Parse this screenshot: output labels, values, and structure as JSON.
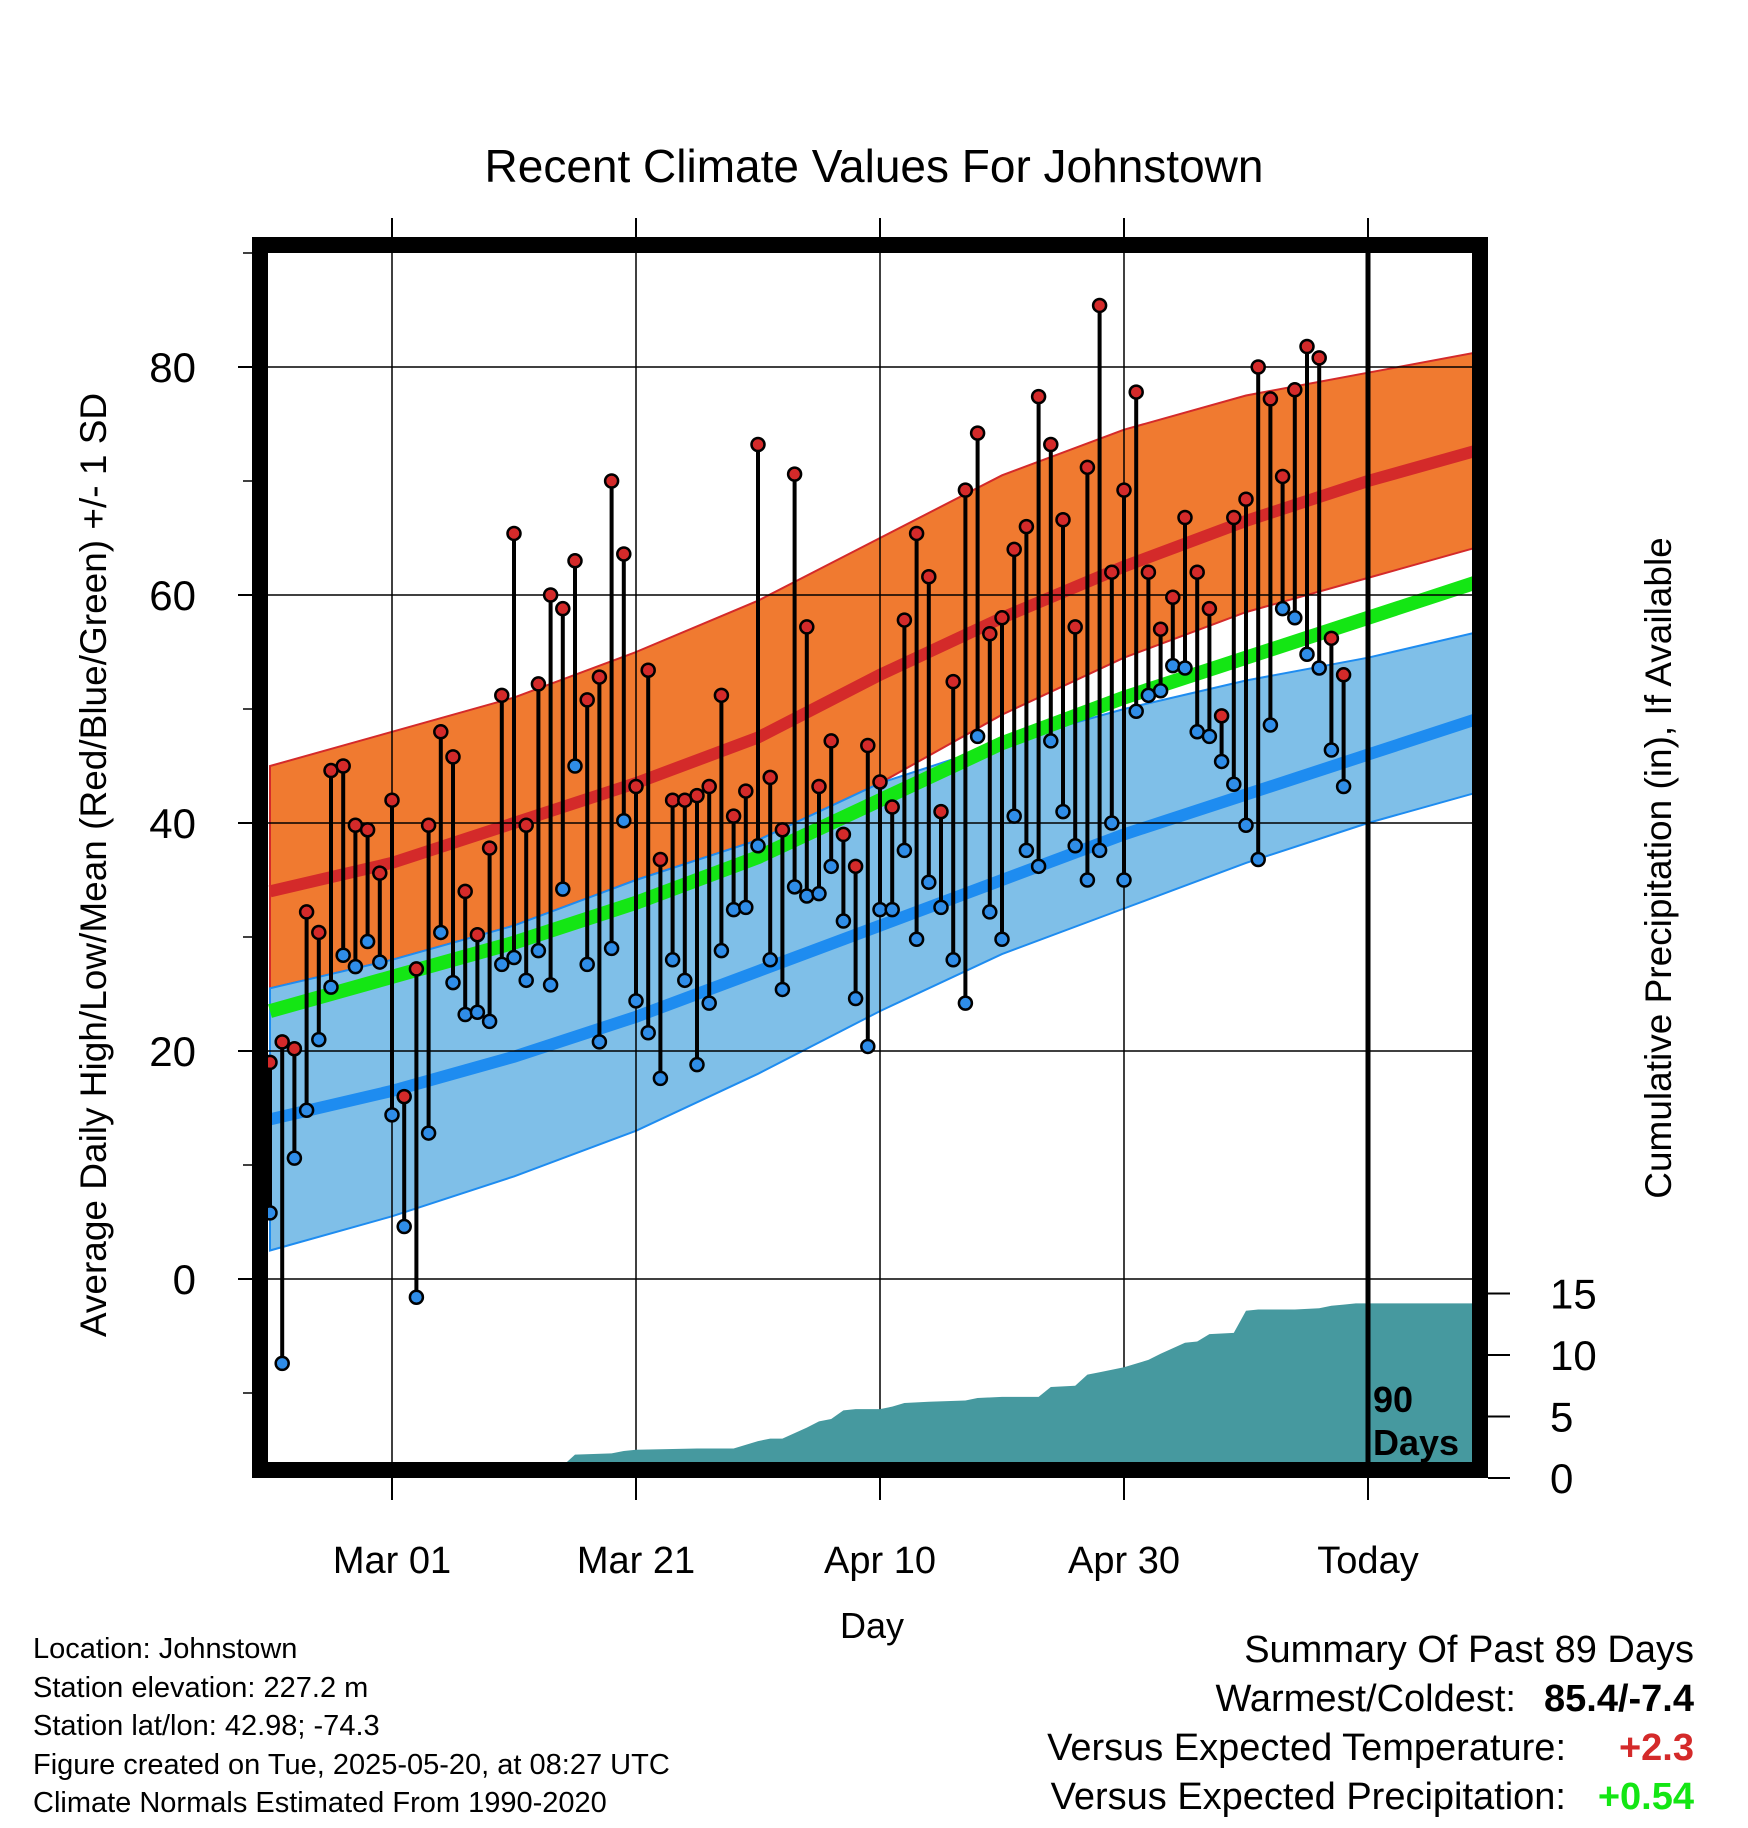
{
  "chart_data": {
    "type": "line",
    "title": "Recent Climate Values For Johnstown",
    "xlabel": "Day",
    "ylabel": "Average Daily High/Low/Mean (Red/Blue/Green) +/- 1 SD",
    "y2label": "Cumulative Precipitation (in), If Available",
    "ylim": [
      -17,
      90
    ],
    "y2lim": [
      0,
      27
    ],
    "x_start_date": "2025-02-19",
    "x_tick_labels": [
      "Mar 01",
      "Mar 21",
      "Apr 10",
      "Apr 30",
      "Today"
    ],
    "x_tick_days": [
      10,
      30,
      50,
      70,
      90
    ],
    "y_ticks": [
      0,
      20,
      40,
      60,
      80
    ],
    "y2_ticks": [
      0,
      5,
      10,
      15
    ],
    "grid": true,
    "today_marker": {
      "day": 90,
      "label_line1": "90",
      "label_line2": "Days"
    },
    "colors": {
      "high_band": "#f07a30",
      "high_line": "#d42a2a",
      "low_band": "#7fbfe8",
      "low_line": "#1e8cf0",
      "mean_line": "#14e614",
      "precip": "#46999f",
      "high_dot": "#d42a2a",
      "low_dot": "#2f8de8"
    },
    "normals": {
      "days": [
        0,
        10,
        20,
        30,
        40,
        50,
        60,
        70,
        80,
        90,
        100
      ],
      "high_mean": [
        34,
        36.5,
        40,
        43.5,
        47.5,
        53,
        58,
        62.5,
        66.5,
        70,
        73
      ],
      "high_upper": [
        45,
        48,
        51,
        55,
        59.5,
        65,
        70.5,
        74.5,
        77.5,
        79.5,
        81.5
      ],
      "high_lower": [
        25.5,
        28,
        31,
        35,
        38.5,
        43.5,
        49.5,
        54.5,
        58.5,
        61.5,
        64.5
      ],
      "low_mean": [
        14,
        16.5,
        19.5,
        23,
        27,
        31,
        35,
        39,
        42.5,
        46,
        49.5
      ],
      "low_upper": [
        25.5,
        28,
        31,
        35,
        38.5,
        43.5,
        47,
        50,
        52.5,
        54.5,
        57
      ],
      "low_lower": [
        2.5,
        5.5,
        9,
        13,
        18,
        23.5,
        28.5,
        32.5,
        36.5,
        40,
        43
      ],
      "daily_mean": [
        23.5,
        26.5,
        29.5,
        33,
        37,
        42,
        47,
        51,
        54.5,
        58,
        61.5
      ]
    },
    "series": [
      {
        "name": "High",
        "values": [
          19,
          20.8,
          20.2,
          32.2,
          30.4,
          44.6,
          45,
          39.8,
          39.4,
          35.6,
          42,
          16,
          27.2,
          39.8,
          48,
          45.8,
          34,
          30.2,
          37.8,
          51.2,
          65.4,
          39.8,
          52.2,
          60,
          58.8,
          63,
          50.8,
          52.8,
          70,
          63.6,
          43.2,
          53.4,
          36.8,
          42,
          42,
          42.4,
          43.2,
          51.2,
          40.6,
          42.8,
          73.2,
          44,
          39.4,
          70.6,
          57.2,
          43.2,
          47.2,
          39,
          36.2,
          46.8,
          43.6,
          41.4,
          57.8,
          65.4,
          61.6,
          41,
          52.4,
          69.2,
          74.2,
          56.6,
          58,
          64,
          66,
          77.4,
          73.2,
          66.6,
          57.2,
          71.2,
          85.4,
          62,
          69.2,
          77.8,
          62,
          57,
          59.8,
          66.8,
          62,
          58.8,
          49.4,
          66.8,
          68.4,
          80,
          77.2,
          70.4,
          78,
          81.8,
          80.8,
          56.2,
          53
        ]
      },
      {
        "name": "Low",
        "values": [
          5.8,
          -7.4,
          10.6,
          14.8,
          21,
          25.6,
          28.4,
          27.4,
          29.6,
          27.8,
          14.4,
          4.6,
          -1.6,
          12.8,
          30.4,
          26,
          23.2,
          23.4,
          22.6,
          27.6,
          28.2,
          26.2,
          28.8,
          25.8,
          34.2,
          45,
          27.6,
          20.8,
          29,
          40.2,
          24.4,
          21.6,
          17.6,
          28,
          26.2,
          18.8,
          24.2,
          28.8,
          32.4,
          32.6,
          38,
          28,
          25.4,
          34.4,
          33.6,
          33.8,
          36.2,
          31.4,
          24.6,
          20.4,
          32.4,
          32.4,
          37.6,
          29.8,
          34.8,
          32.6,
          28,
          24.2,
          47.6,
          32.2,
          29.8,
          40.6,
          37.6,
          36.2,
          47.2,
          41,
          38,
          35,
          37.6,
          40,
          35,
          49.8,
          51.2,
          51.6,
          53.8,
          53.6,
          48,
          47.6,
          45.4,
          43.4,
          39.8,
          36.8,
          48.6,
          58.8,
          58,
          54.8,
          53.6,
          46.4,
          43.2
        ]
      }
    ],
    "precip_cumulative": [
      [
        0,
        0
      ],
      [
        12,
        0
      ],
      [
        13,
        0.2
      ],
      [
        14,
        0.8
      ],
      [
        15,
        0.9
      ],
      [
        17,
        1.0
      ],
      [
        24,
        1.0
      ],
      [
        25,
        1.9
      ],
      [
        28,
        2.0
      ],
      [
        29,
        2.2
      ],
      [
        30,
        2.3
      ],
      [
        35,
        2.4
      ],
      [
        38,
        2.4
      ],
      [
        40,
        3.0
      ],
      [
        41,
        3.2
      ],
      [
        42,
        3.2
      ],
      [
        44,
        4.1
      ],
      [
        45,
        4.6
      ],
      [
        46,
        4.8
      ],
      [
        47,
        5.5
      ],
      [
        48,
        5.6
      ],
      [
        50,
        5.6
      ],
      [
        51,
        5.8
      ],
      [
        52,
        6.1
      ],
      [
        54,
        6.2
      ],
      [
        57,
        6.3
      ],
      [
        58,
        6.5
      ],
      [
        60,
        6.6
      ],
      [
        63,
        6.6
      ],
      [
        64,
        7.4
      ],
      [
        66,
        7.5
      ],
      [
        67,
        8.4
      ],
      [
        68,
        8.6
      ],
      [
        69,
        8.8
      ],
      [
        70,
        9.0
      ],
      [
        72,
        9.6
      ],
      [
        73,
        10.1
      ],
      [
        75,
        11.0
      ],
      [
        76,
        11.1
      ],
      [
        77,
        11.7
      ],
      [
        79,
        11.8
      ],
      [
        80,
        13.6
      ],
      [
        81,
        13.7
      ],
      [
        84,
        13.7
      ],
      [
        86,
        13.8
      ],
      [
        87,
        14.0
      ],
      [
        88,
        14.1
      ],
      [
        89,
        14.2
      ],
      [
        100,
        14.2
      ]
    ]
  },
  "footer": {
    "location": "Location: Johnstown",
    "elevation": "Station elevation: 227.2 m",
    "latlon": "Station lat/lon: 42.98; -74.3",
    "created": "Figure created on Tue, 2025-05-20, at 08:27 UTC",
    "normals": "Climate Normals Estimated From 1990-2020"
  },
  "summary": {
    "title": "Summary Of Past 89 Days",
    "warm_cold_label": "Warmest/Coldest:",
    "warm_cold_value": "85.4/-7.4",
    "temp_label": "Versus Expected Temperature:",
    "temp_value": "+2.3",
    "temp_color": "#d42a2a",
    "precip_label": "Versus Expected Precipitation:",
    "precip_value": "+0.54",
    "precip_color": "#14e614"
  }
}
